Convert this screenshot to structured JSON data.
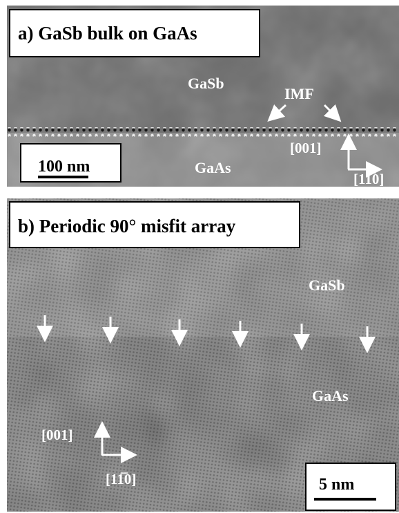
{
  "panels": [
    {
      "title": "a) GaSb bulk on GaAs",
      "top_material": "GaSb",
      "interface": "IMF",
      "bottom_material": "GaAs",
      "scale_bar": "100 nm",
      "direction_vertical": "[001]",
      "direction_horizontal": "[11̅0]"
    },
    {
      "title": "b) Periodic 90° misfit array",
      "top_material": "GaSb",
      "bottom_material": "GaAs",
      "scale_bar": "5 nm",
      "direction_vertical": "[001]",
      "direction_horizontal": "[11̅0]"
    }
  ]
}
